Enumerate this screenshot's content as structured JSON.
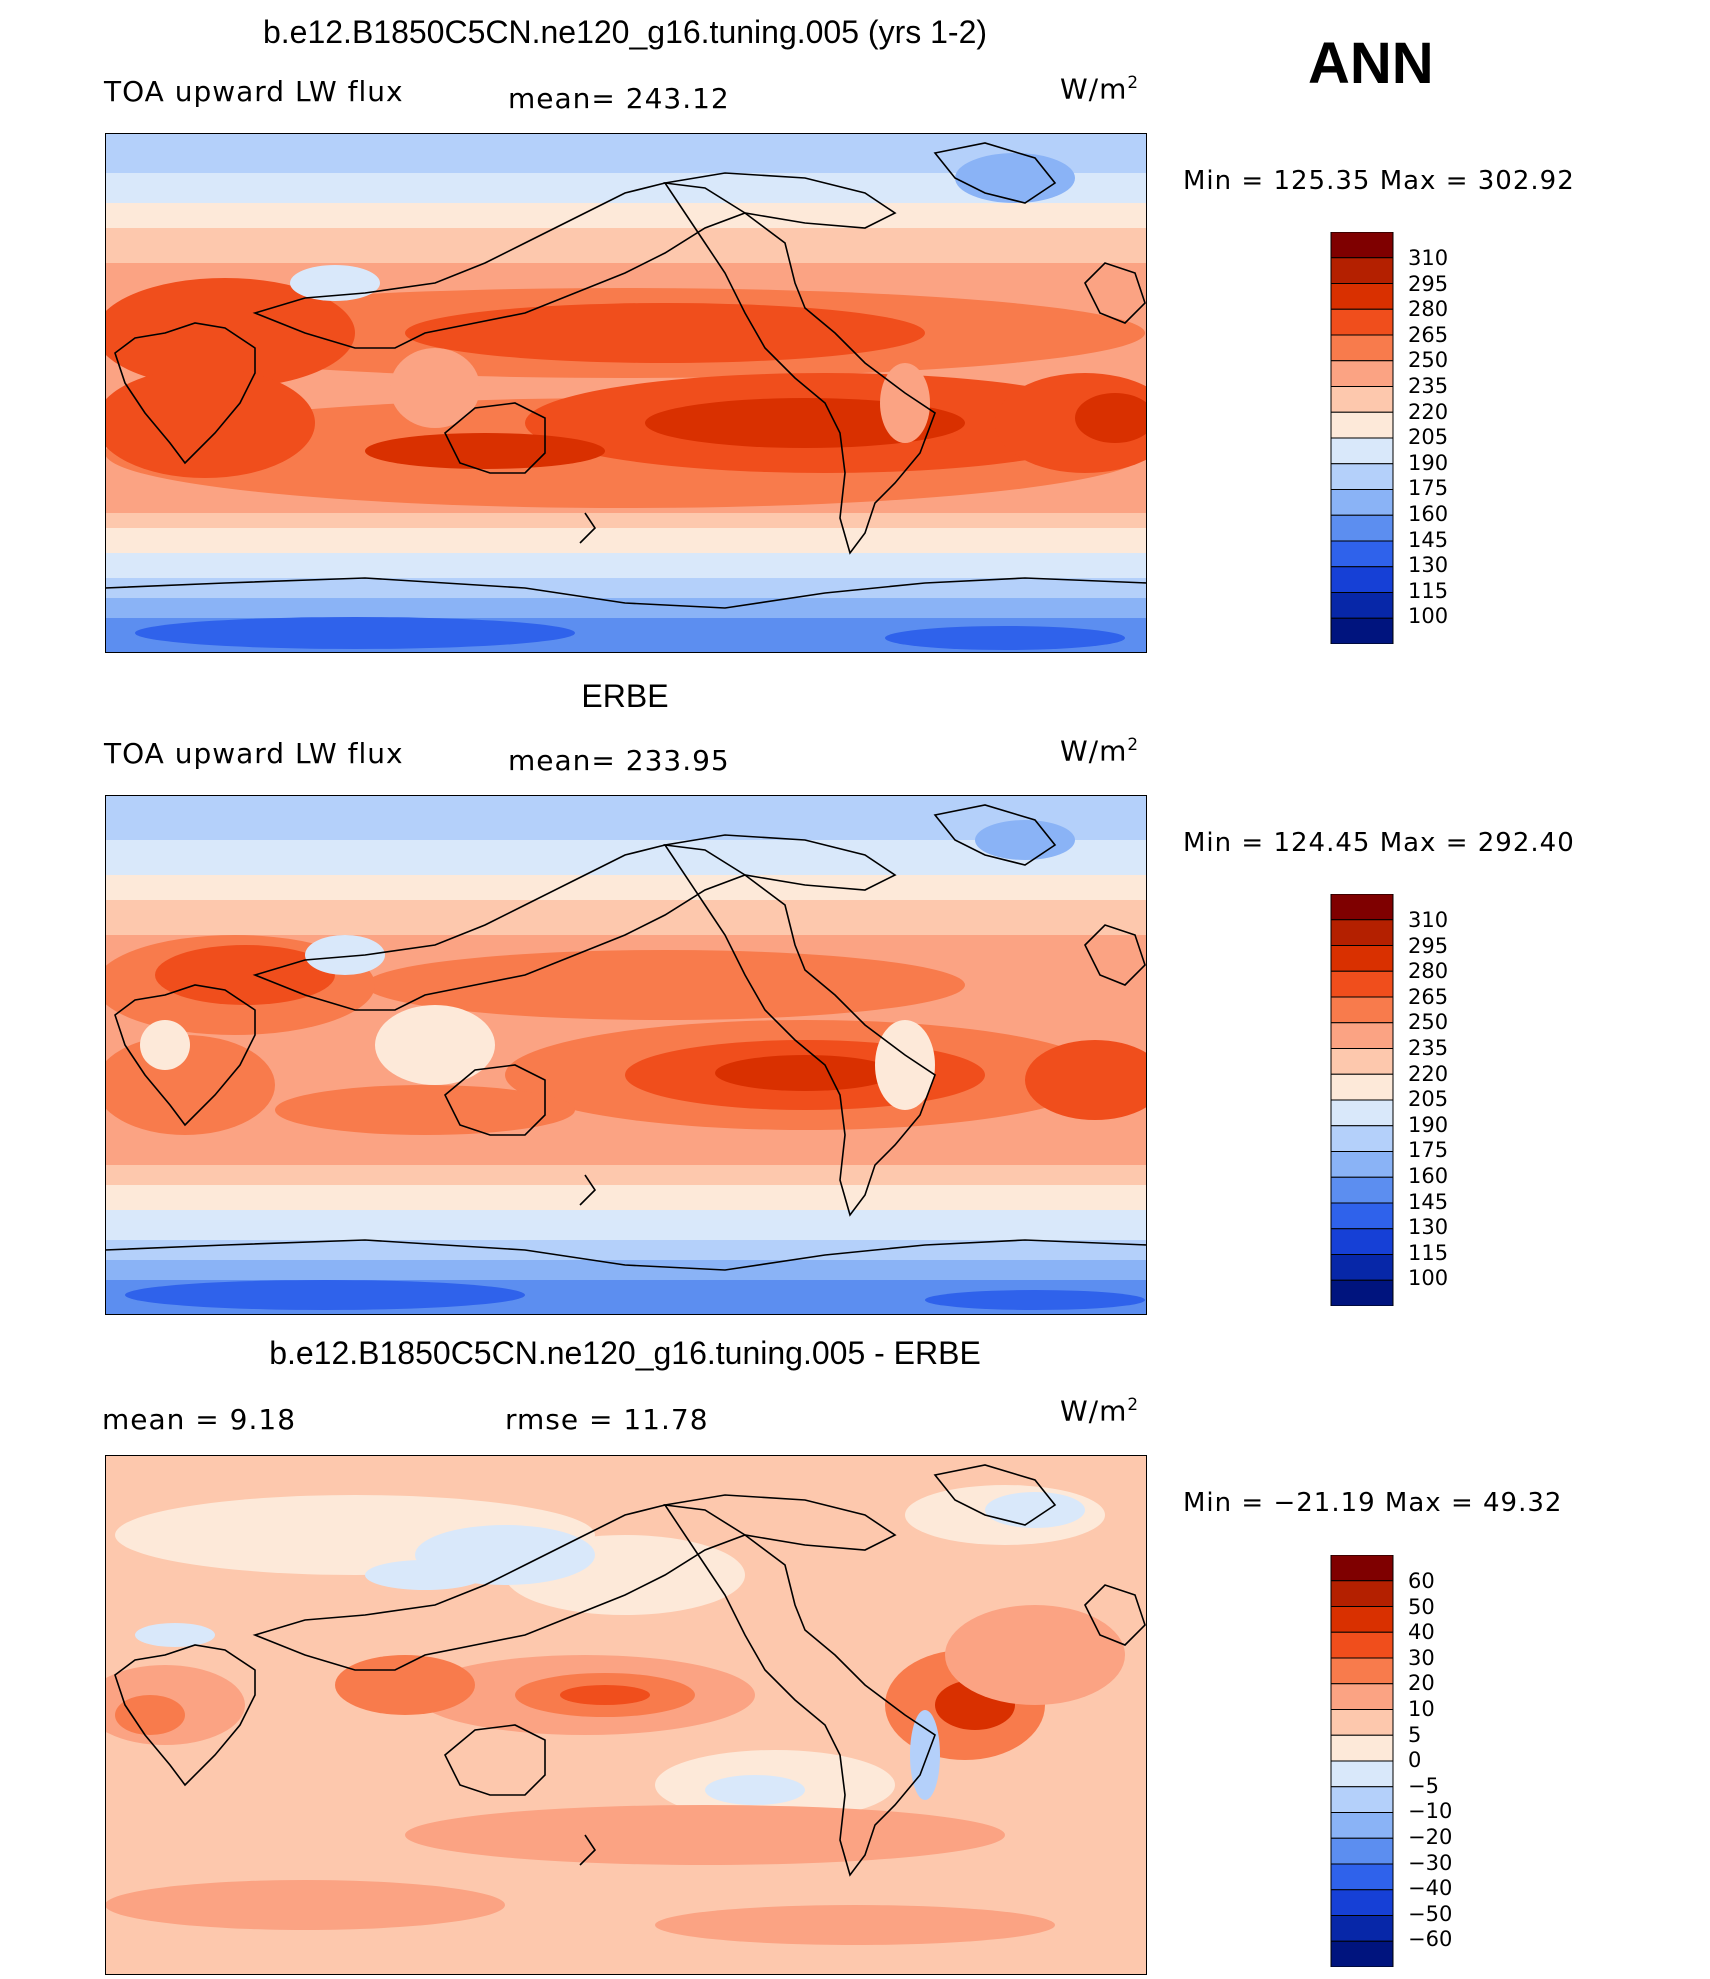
{
  "season": "ANN",
  "unit_prefix": "W/m",
  "unit_power": "2",
  "panels": [
    {
      "title": "b.e12.B1850C5CN.ne120_g16.tuning.005 (yrs 1-2)",
      "left_label": "TOA upward LW flux",
      "mid_label": "mean=  243.12",
      "minmax": "Min  =  125.35  Max  =  302.92",
      "colorbar": [
        "310",
        "295",
        "280",
        "265",
        "250",
        "235",
        "220",
        "205",
        "190",
        "175",
        "160",
        "145",
        "130",
        "115",
        "100"
      ]
    },
    {
      "title": "ERBE",
      "left_label": "TOA upward LW flux",
      "mid_label": "mean=  233.95",
      "minmax": "Min  =  124.45  Max  =  292.40",
      "colorbar": [
        "310",
        "295",
        "280",
        "265",
        "250",
        "235",
        "220",
        "205",
        "190",
        "175",
        "160",
        "145",
        "130",
        "115",
        "100"
      ]
    },
    {
      "title": "b.e12.B1850C5CN.ne120_g16.tuning.005 - ERBE",
      "left_label": "mean  =      9.18",
      "mid_label": "rmse  =     11.78",
      "minmax": "Min  =  −21.19  Max  =     49.32",
      "colorbar": [
        "60",
        "50",
        "40",
        "30",
        "20",
        "10",
        "5",
        "0",
        "−5",
        "−10",
        "−20",
        "−30",
        "−40",
        "−50",
        "−60"
      ]
    }
  ],
  "colors": {
    "scale": [
      "#7f0000",
      "#b42000",
      "#d93000",
      "#f04e1c",
      "#f87b4c",
      "#fba383",
      "#fdc8ad",
      "#fde9d9",
      "#d9e8fa",
      "#b4d0fa",
      "#8ab3f6",
      "#5c8ef0",
      "#2f62eb",
      "#1640d6",
      "#0727a8",
      "#00147e"
    ]
  },
  "chart_data": [
    {
      "type": "heatmap",
      "title": "b.e12.B1850C5CN.ne120_g16.tuning.005 (yrs 1-2)",
      "variable": "TOA upward LW flux",
      "units": "W/m2",
      "mean": 243.12,
      "min": 125.35,
      "max": 302.92,
      "contour_levels": [
        100,
        115,
        130,
        145,
        160,
        175,
        190,
        205,
        220,
        235,
        250,
        265,
        280,
        295,
        310
      ],
      "map": "global, Pacific-centered, lon 0-360, lat -90 to 90"
    },
    {
      "type": "heatmap",
      "title": "ERBE",
      "variable": "TOA upward LW flux",
      "units": "W/m2",
      "mean": 233.95,
      "min": 124.45,
      "max": 292.4,
      "contour_levels": [
        100,
        115,
        130,
        145,
        160,
        175,
        190,
        205,
        220,
        235,
        250,
        265,
        280,
        295,
        310
      ],
      "map": "global, Pacific-centered, lon 0-360, lat -90 to 90"
    },
    {
      "type": "heatmap",
      "title": "b.e12.B1850C5CN.ne120_g16.tuning.005 - ERBE",
      "units": "W/m2",
      "mean": 9.18,
      "rmse": 11.78,
      "min": -21.19,
      "max": 49.32,
      "contour_levels": [
        -60,
        -50,
        -40,
        -30,
        -20,
        -10,
        -5,
        0,
        5,
        10,
        20,
        30,
        40,
        50,
        60
      ],
      "map": "global, Pacific-centered, lon 0-360, lat -90 to 90"
    }
  ]
}
